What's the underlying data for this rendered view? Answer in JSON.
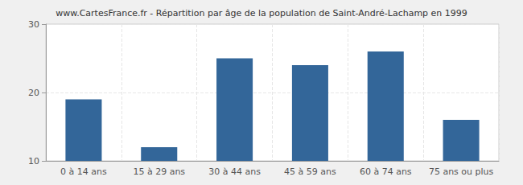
{
  "chart_data": {
    "type": "bar",
    "title": "www.CartesFrance.fr - Répartition par âge de la population de Saint-André-Lachamp en 1999",
    "categories": [
      "0 à 14 ans",
      "15 à 29 ans",
      "30 à 44 ans",
      "45 à 59 ans",
      "60 à 74 ans",
      "75 ans ou plus"
    ],
    "values": [
      19,
      12,
      25,
      24,
      26,
      16
    ],
    "color": "#336699",
    "ylim": [
      10,
      30
    ],
    "yticks": [
      10,
      20,
      30
    ],
    "grid": true
  }
}
